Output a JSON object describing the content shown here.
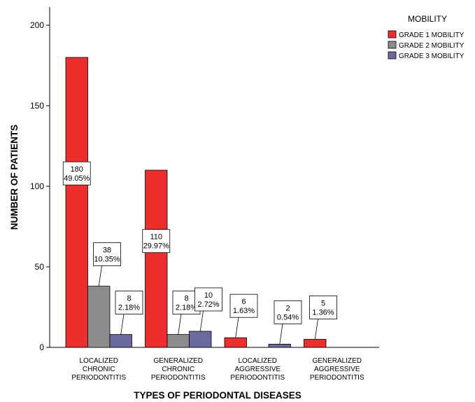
{
  "chart_data": {
    "type": "bar",
    "xlabel": "TYPES OF PERIODONTAL DISEASES",
    "ylabel": "NUMBER OF PATIENTS",
    "ylim": [
      0,
      210
    ],
    "yticks": [
      "0",
      "50",
      "100",
      "150",
      "200"
    ],
    "categories": [
      [
        "LOCALIZED",
        "CHRONIC",
        "PERIODONTITIS"
      ],
      [
        "GENERALIZED",
        "CHRONIC",
        "PERIODONTITIS"
      ],
      [
        "LOCALIZED",
        "AGGRESSIVE",
        "PERIODONTITIS"
      ],
      [
        "GENERALIZED",
        "AGGRESSIVE",
        "PERIODONTITIS"
      ]
    ],
    "legend": {
      "title": "MOBILITY",
      "position": "top-right"
    },
    "series": [
      {
        "name": "GRADE 1 MOBILITY",
        "color": "#ee2d2d",
        "values": [
          180,
          110,
          6,
          5
        ],
        "labels": [
          [
            "180",
            "49.05%"
          ],
          [
            "110",
            "29.97%"
          ],
          [
            "6",
            "1.63%"
          ],
          [
            "5",
            "1.36%"
          ]
        ]
      },
      {
        "name": "GRADE 2 MOBILITY",
        "color": "#8c8c8c",
        "values": [
          38,
          8,
          0,
          0
        ],
        "labels": [
          [
            "38",
            "10.35%"
          ],
          [
            "8",
            "2.18%"
          ],
          null,
          null
        ]
      },
      {
        "name": "GRADE 3 MOBILITY",
        "color": "#6a6a9e",
        "values": [
          8,
          10,
          2,
          0
        ],
        "labels": [
          [
            "8",
            "2.18%"
          ],
          [
            "10",
            "2.72%"
          ],
          [
            "2",
            "0.54%"
          ],
          null
        ]
      }
    ]
  }
}
